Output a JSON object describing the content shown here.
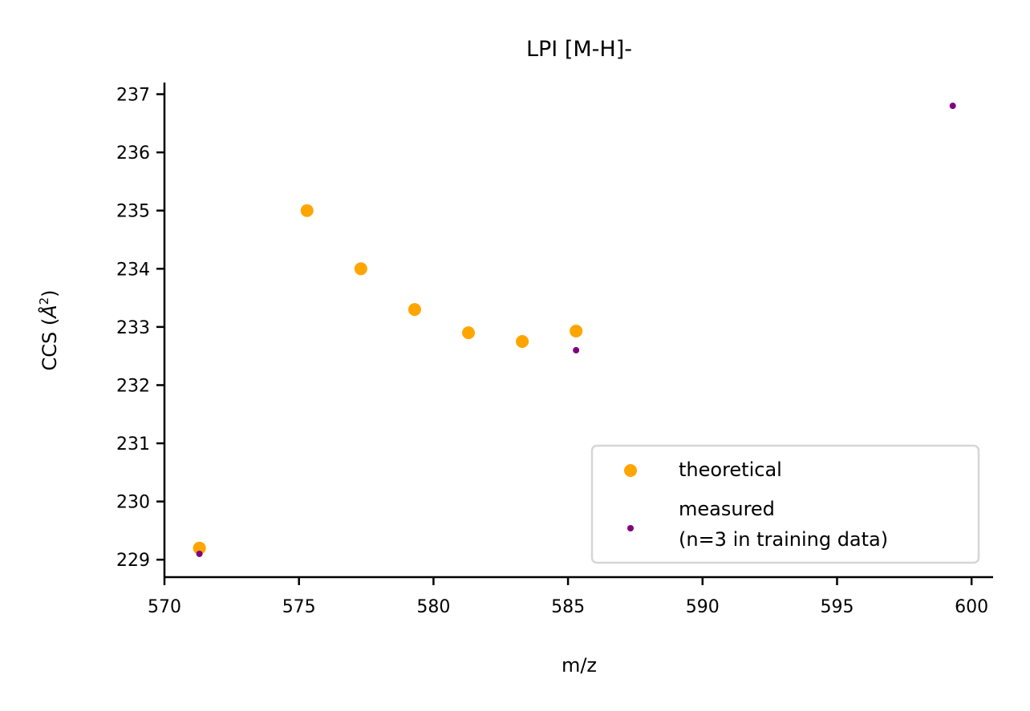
{
  "chart_data": {
    "type": "scatter",
    "title": "LPI [M-H]-",
    "xlabel": "m/z",
    "ylabel": {
      "prefix": "CCS (",
      "symbol": "Å",
      "exponent": "2",
      "suffix": ")"
    },
    "xlim": [
      570,
      600.8
    ],
    "ylim": [
      228.7,
      237.2
    ],
    "xticks": [
      570,
      575,
      580,
      585,
      590,
      595,
      600
    ],
    "yticks": [
      229,
      230,
      231,
      232,
      233,
      234,
      235,
      236,
      237
    ],
    "xtick_labels": [
      "570",
      "575",
      "580",
      "585",
      "590",
      "595",
      "600"
    ],
    "ytick_labels": [
      "229",
      "230",
      "231",
      "232",
      "233",
      "234",
      "235",
      "236",
      "237"
    ],
    "grid": false,
    "legend_position": "lower-right",
    "series": [
      {
        "name": "theoretical",
        "color": "#FFA500",
        "marker_size": "large",
        "x": [
          571.3,
          575.3,
          577.3,
          579.3,
          581.3,
          583.3,
          585.3
        ],
        "y": [
          229.2,
          235.0,
          234.0,
          233.3,
          232.9,
          232.75,
          232.93
        ]
      },
      {
        "name": "measured\n(n=3 in training data)",
        "name_lines": [
          "measured",
          "(n=3 in training data)"
        ],
        "color": "#800080",
        "marker_size": "small",
        "x": [
          571.3,
          585.3,
          599.3
        ],
        "y": [
          229.1,
          232.6,
          236.8
        ]
      }
    ]
  }
}
